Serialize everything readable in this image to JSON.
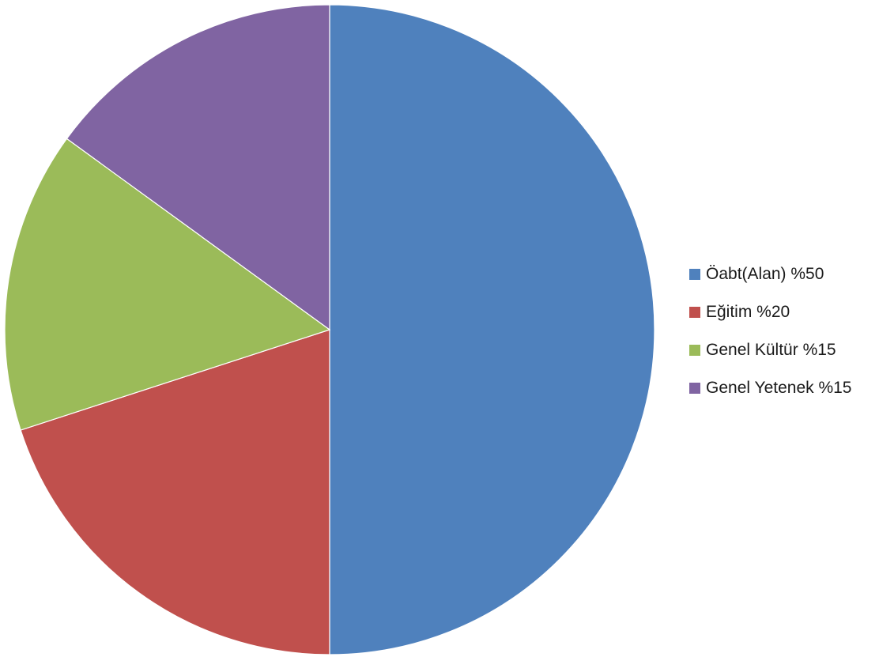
{
  "chart_data": {
    "type": "pie",
    "title": "",
    "categories": [
      "Öabt(Alan) %50",
      "Eğitim %20",
      "Genel Kültür %15",
      "Genel Yetenek %15"
    ],
    "values": [
      50,
      20,
      15,
      15
    ],
    "colors": [
      "#4F81BD",
      "#C0504D",
      "#9BBB59",
      "#8064A2"
    ],
    "start_angle": "12 o'clock",
    "direction": "clockwise",
    "legend": {
      "position": "right",
      "entries": [
        {
          "label": "Öabt(Alan) %50",
          "color": "#4F81BD"
        },
        {
          "label": "Eğitim %20",
          "color": "#C0504D"
        },
        {
          "label": "Genel Kültür %15",
          "color": "#9BBB59"
        },
        {
          "label": "Genel Yetenek %15",
          "color": "#8064A2"
        }
      ]
    }
  }
}
